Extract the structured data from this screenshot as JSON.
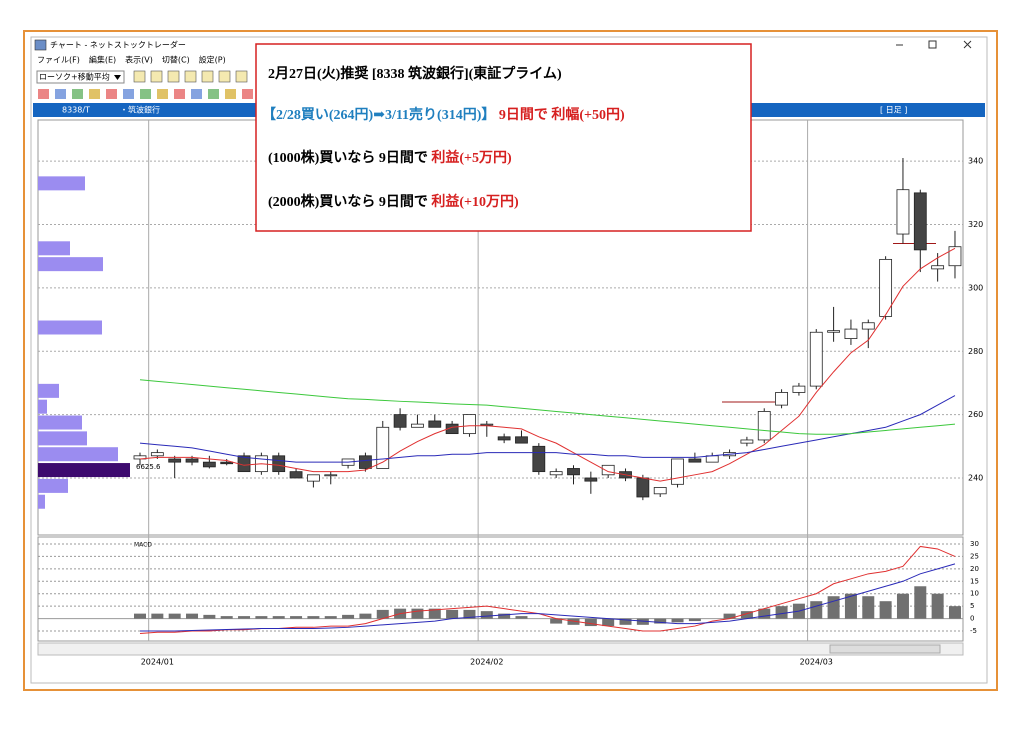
{
  "window": {
    "title": "チャート - ネットストックトレーダー",
    "menu": [
      "ファイル(F)",
      "編集(E)",
      "表示(V)",
      "切替(C)",
      "設定(P)"
    ],
    "dropdown": "ローソク+移動平均"
  },
  "header": {
    "code": "8338/T",
    "name": "・筑波銀行",
    "period": "[ 日足 ]"
  },
  "annotation": {
    "line1": "2月27日(火)推奨 [8338 筑波銀行](東証プライム)",
    "line2": {
      "trade": "【2/28買い(264円)➡3/11売り(314円)】",
      "result": " 9日間で 利幅(+50円)"
    },
    "line3": {
      "text": "(1000株)買いなら 9日間で ",
      "profit": "利益(+5万円)"
    },
    "line4": {
      "text": "(2000株)買いなら 9日間で ",
      "profit": "利益(+10万円)"
    }
  },
  "chart_data": [
    {
      "type": "candlestick",
      "categories": [
        null,
        "2024/01",
        null,
        null,
        null,
        null,
        null,
        null,
        null,
        null,
        null,
        null,
        null,
        null,
        null,
        null,
        null,
        null,
        null,
        null,
        "2024/02",
        null,
        null,
        null,
        null,
        null,
        null,
        null,
        null,
        null,
        null,
        null,
        null,
        null,
        null,
        null,
        null,
        null,
        null,
        "2024/03",
        null,
        null,
        null,
        null,
        null,
        null,
        null,
        null
      ],
      "open": [
        246,
        247,
        246,
        246,
        245,
        245,
        247,
        242,
        247,
        242,
        239,
        241,
        244,
        247,
        243,
        260,
        256,
        258,
        257,
        254,
        257,
        253,
        253,
        250,
        241,
        243,
        240,
        241,
        242,
        240,
        235,
        238,
        246,
        245,
        247,
        251,
        252,
        263,
        267,
        269,
        286,
        284,
        287,
        291,
        317,
        330,
        306,
        307
      ],
      "high": [
        248,
        249,
        247,
        247,
        247,
        246,
        248,
        248,
        248,
        243,
        241,
        242,
        245,
        248,
        258,
        262,
        260,
        260,
        258,
        260,
        258,
        254,
        255,
        251,
        243,
        244,
        242,
        244,
        243,
        241,
        237,
        246,
        248,
        248,
        249,
        253,
        262,
        268,
        270,
        287,
        294,
        290,
        290,
        310,
        341,
        331,
        311,
        318
      ],
      "low": [
        244,
        246,
        240,
        244,
        243,
        244,
        242,
        241,
        241,
        240,
        237,
        238,
        243,
        242,
        243,
        255,
        256,
        256,
        254,
        253,
        253,
        251,
        251,
        241,
        240,
        238,
        235,
        240,
        239,
        233,
        234,
        237,
        245,
        245,
        246,
        250,
        251,
        262,
        266,
        268,
        283,
        282,
        281,
        290,
        314,
        305,
        302,
        303
      ],
      "close": [
        247,
        248,
        245,
        245,
        243.5,
        244.5,
        242,
        247,
        242,
        240,
        241,
        241,
        246,
        243,
        256,
        256,
        257,
        256,
        254,
        260,
        257,
        252,
        251,
        242,
        242,
        241,
        239,
        244,
        240,
        234,
        237,
        246,
        245,
        247,
        248,
        252,
        261,
        267,
        269,
        286,
        286.5,
        287,
        289,
        309,
        331,
        312,
        307,
        313
      ],
      "up_color": "#ffffff",
      "down_color": "#444444",
      "series": [
        {
          "color": "#e03030",
          "values": [
            246,
            246.5,
            246.5,
            246.5,
            246,
            245.5,
            244,
            244.5,
            244,
            243,
            242,
            242,
            242,
            242.5,
            245,
            248.5,
            251.5,
            254,
            256,
            256.5,
            256.5,
            256,
            255.5,
            253,
            251,
            248,
            245,
            242,
            241,
            240,
            239,
            240,
            241,
            242,
            244.5,
            247.5,
            250.5,
            255,
            259.5,
            267,
            273.5,
            279.5,
            283.5,
            291.5,
            300.5,
            306,
            309.5,
            312.5
          ]
        },
        {
          "color": "#2a2ab8",
          "values": [
            251,
            250.5,
            250,
            249.5,
            248.5,
            247.5,
            246.5,
            246,
            245.5,
            245,
            245,
            245,
            245,
            245.5,
            246,
            246.5,
            247,
            247,
            247.5,
            247.5,
            248,
            248,
            248,
            248,
            248,
            247.5,
            247.5,
            247,
            247,
            246.5,
            246.5,
            246.5,
            246.5,
            247,
            247.5,
            248,
            249,
            250,
            251,
            252,
            253,
            254,
            255,
            256,
            258,
            260,
            263,
            266
          ]
        },
        {
          "color": "#3cc83c",
          "values": [
            271,
            270.5,
            270,
            269.5,
            269,
            268.5,
            268,
            267.5,
            267,
            266.5,
            266,
            265.5,
            265,
            264.8,
            264.5,
            264.2,
            264,
            263.7,
            263.4,
            263.2,
            263,
            262.5,
            262,
            261.5,
            261,
            260.5,
            260,
            259.5,
            259,
            258.5,
            258,
            257.5,
            257,
            256.5,
            256,
            255.5,
            255,
            254.5,
            254,
            253.8,
            253.8,
            254,
            254.5,
            255,
            255.5,
            256,
            256.5,
            257
          ]
        }
      ],
      "levels": [
        264,
        314
      ],
      "ylim": [
        222,
        353
      ],
      "yticks": [
        240,
        260,
        280,
        300,
        320,
        340
      ],
      "volume_profile": {
        "prices": [
          333,
          312.5,
          307.5,
          287.5,
          267.5,
          262.5,
          257.5,
          252.5,
          247.5,
          242.5,
          237.5,
          232.5
        ],
        "values": [
          47,
          32,
          65,
          64,
          21,
          9,
          44,
          49,
          80,
          92,
          30,
          7
        ],
        "colors": [
          "#9b8cf0",
          "#9b8cf0",
          "#9b8cf0",
          "#9b8cf0",
          "#9b8cf0",
          "#9b8cf0",
          "#9b8cf0",
          "#9b8cf0",
          "#9b8cf0",
          "#3d0a6e",
          "#9b8cf0",
          "#9b8cf0"
        ],
        "xlim": [
          0,
          100
        ],
        "label": "6625.6"
      }
    },
    {
      "type": "macd",
      "title": "MACD",
      "values": [
        2,
        2,
        2,
        2,
        1.5,
        1,
        1,
        1,
        1,
        1,
        1,
        1,
        1.5,
        2,
        3.5,
        4,
        4,
        4,
        3.5,
        3.5,
        3,
        2,
        1,
        0,
        -2,
        -2.5,
        -3,
        -3,
        -2.5,
        -2.5,
        -2,
        -1.5,
        -1,
        0,
        2,
        3,
        4,
        5,
        6,
        7,
        9,
        10,
        9,
        7,
        10,
        13,
        10,
        5
      ],
      "series": [
        {
          "color": "#e03030",
          "values": [
            -6,
            -5.5,
            -5.5,
            -5,
            -5,
            -4.5,
            -4.5,
            -4,
            -4,
            -3.5,
            -3.5,
            -3,
            -3,
            -2,
            0,
            2,
            3,
            3.5,
            4,
            4.5,
            5,
            4,
            3,
            2,
            0,
            -1,
            -2,
            -3,
            -4,
            -5,
            -5,
            -4,
            -3,
            -1,
            0,
            2,
            4,
            6,
            8,
            10,
            14,
            16,
            18,
            19,
            21,
            29,
            28,
            25
          ]
        },
        {
          "color": "#2a2ab8",
          "values": [
            -5,
            -5,
            -5,
            -4.8,
            -4.6,
            -4.4,
            -4.2,
            -4,
            -4,
            -4,
            -4,
            -3.8,
            -3.5,
            -3,
            -2.5,
            -2,
            -1.5,
            -1,
            0,
            0.5,
            1,
            1.5,
            2,
            2,
            1.5,
            1,
            0.5,
            0,
            -0.5,
            -1,
            -1.5,
            -2,
            -2,
            -1.5,
            -1,
            0,
            1,
            2,
            3,
            5,
            7,
            9,
            11,
            13,
            15,
            18,
            20,
            22
          ]
        }
      ],
      "bar_color": "#707070",
      "ylim": [
        -8.6,
        32.4
      ],
      "yticks": [
        30,
        25,
        20,
        15,
        10,
        5,
        0,
        -5
      ]
    }
  ]
}
